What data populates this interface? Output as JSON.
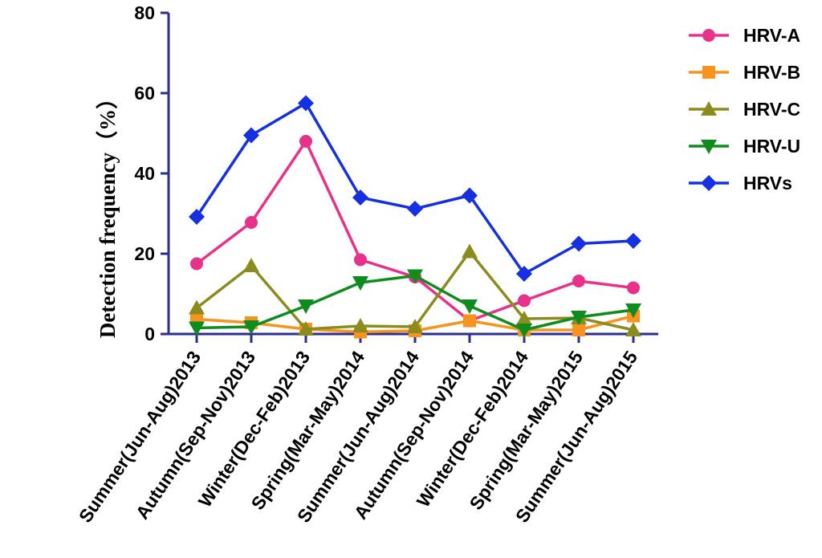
{
  "chart_data": {
    "type": "line",
    "title": "",
    "xlabel": "",
    "ylabel": "Detection frequency（%）",
    "ylim": [
      0,
      80
    ],
    "yticks": [
      "0",
      "20",
      "40",
      "60",
      "80"
    ],
    "categories": [
      "Summer(Jun-Aug)2013",
      "Autumn(Sep-Nov)2013",
      "Winter(Dec-Feb)2013",
      "Spring(Mar-May)2014",
      "Summer(Jun-Aug)2014",
      "Autumn(Sep-Nov)2014",
      "Winter(Dec-Feb)2014",
      "Spring(Mar-May)2015",
      "Summer(Jun-Aug)2015"
    ],
    "legend_position": "top-right",
    "series": [
      {
        "name": "HRV-A",
        "color": "#e8318b",
        "marker": "circle",
        "values": [
          17.5,
          27.8,
          48.0,
          18.5,
          14.2,
          3.3,
          8.3,
          13.2,
          11.5
        ]
      },
      {
        "name": "HRV-B",
        "color": "#f7931e",
        "marker": "square",
        "values": [
          3.7,
          2.8,
          1.2,
          0.5,
          0.8,
          3.3,
          1.0,
          1.0,
          4.5
        ]
      },
      {
        "name": "HRV-C",
        "color": "#8c8c1e",
        "marker": "triangle-up",
        "values": [
          6.5,
          17.0,
          1.2,
          2.0,
          1.8,
          20.5,
          3.8,
          4.0,
          1.0
        ]
      },
      {
        "name": "HRV-U",
        "color": "#0f8c1e",
        "marker": "triangle-down",
        "values": [
          1.5,
          1.8,
          7.0,
          12.8,
          14.5,
          7.0,
          1.0,
          4.2,
          6.0
        ]
      },
      {
        "name": "HRVs",
        "color": "#1530e0",
        "marker": "diamond",
        "values": [
          29.2,
          49.5,
          57.5,
          34.0,
          31.2,
          34.5,
          15.0,
          22.5,
          23.2
        ]
      }
    ]
  }
}
